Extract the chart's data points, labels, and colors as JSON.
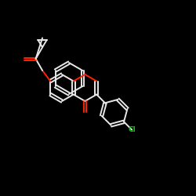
{
  "bg_color": "#000000",
  "bond_color": "#e8e8e8",
  "oxygen_color": "#ff2200",
  "chlorine_color": "#00cc00",
  "lw": 1.4,
  "figsize": [
    2.5,
    2.5
  ],
  "dpi": 100
}
